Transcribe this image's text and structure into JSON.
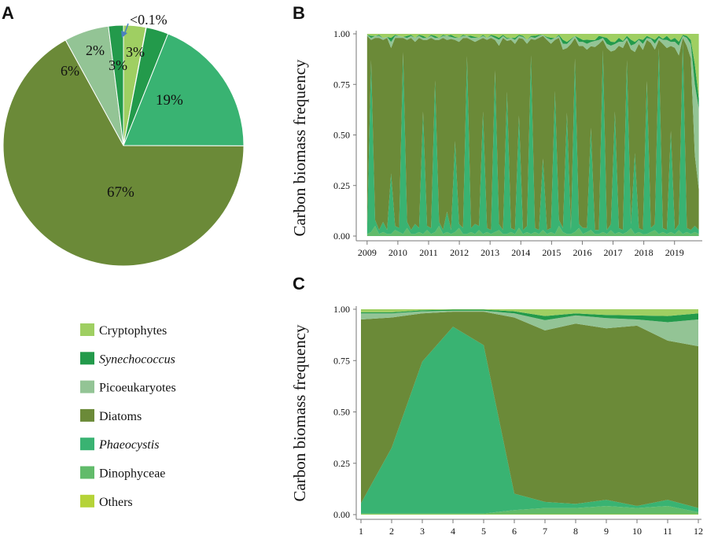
{
  "panels": {
    "a": "A",
    "b": "B",
    "c": "C"
  },
  "colors": {
    "cryptophytes": "#9fcf62",
    "synechococcus": "#239a4b",
    "picoeukaryotes": "#93c495",
    "diatoms": "#6b8a38",
    "phaeocystis": "#39b372",
    "dinophyceae": "#61bb6a",
    "others": "#b5d338"
  },
  "legend": [
    {
      "key": "cryptophytes",
      "label": "Cryptophytes",
      "italic": false
    },
    {
      "key": "synechococcus",
      "label": "Synechococcus",
      "italic": true
    },
    {
      "key": "picoeukaryotes",
      "label": "Picoeukaryotes",
      "italic": false
    },
    {
      "key": "diatoms",
      "label": "Diatoms",
      "italic": false
    },
    {
      "key": "phaeocystis",
      "label": "Phaeocystis",
      "italic": true
    },
    {
      "key": "dinophyceae",
      "label": "Dinophyceae",
      "italic": false
    },
    {
      "key": "others",
      "label": "Others",
      "italic": false
    }
  ],
  "chart_data": [
    {
      "panel": "A",
      "type": "pie",
      "title": "",
      "slices": [
        {
          "key": "cryptophytes",
          "label": "Cryptophytes",
          "value": 3,
          "text": "3%"
        },
        {
          "key": "dinophyceae",
          "label": "Dinophyceae",
          "value": 0.05,
          "text": "<0.1%"
        },
        {
          "key": "synechococcus",
          "label": "Synechococcus",
          "value": 3,
          "text": "3%"
        },
        {
          "key": "phaeocystis",
          "label": "Phaeocystis",
          "value": 19,
          "text": "19%"
        },
        {
          "key": "diatoms",
          "label": "Diatoms",
          "value": 67,
          "text": "67%"
        },
        {
          "key": "picoeukaryotes",
          "label": "Picoeukaryotes",
          "value": 6,
          "text": "6%"
        },
        {
          "key": "synechococcus",
          "label": "Synechococcus",
          "value": 2,
          "text": "2%"
        }
      ]
    },
    {
      "panel": "B",
      "type": "area",
      "stacked": true,
      "ylabel": "Carbon biomass frequency",
      "xlabel": "",
      "ylim": [
        0,
        1
      ],
      "xlim": [
        2008.8,
        2019.8
      ],
      "yticks": [
        "0.00",
        "0.25",
        "0.50",
        "0.75",
        "1.00"
      ],
      "xticks": [
        "2009",
        "2010",
        "2011",
        "2012",
        "2013",
        "2014",
        "2015",
        "2016",
        "2017",
        "2018",
        "2019"
      ],
      "series_order": [
        "others",
        "dinophyceae",
        "phaeocystis",
        "diatoms",
        "picoeukaryotes",
        "synechococcus",
        "cryptophytes"
      ],
      "x": [
        2009.0,
        2009.13,
        2009.26,
        2009.39,
        2009.52,
        2009.65,
        2009.78,
        2009.91,
        2010.04,
        2010.17,
        2010.3,
        2010.43,
        2010.56,
        2010.69,
        2010.82,
        2010.95,
        2011.08,
        2011.21,
        2011.34,
        2011.47,
        2011.6,
        2011.73,
        2011.86,
        2011.99,
        2012.12,
        2012.25,
        2012.38,
        2012.51,
        2012.64,
        2012.77,
        2012.9,
        2013.03,
        2013.16,
        2013.29,
        2013.42,
        2013.55,
        2013.68,
        2013.81,
        2013.94,
        2014.07,
        2014.2,
        2014.33,
        2014.46,
        2014.59,
        2014.72,
        2014.85,
        2014.98,
        2015.11,
        2015.24,
        2015.37,
        2015.5,
        2015.63,
        2015.76,
        2015.89,
        2016.02,
        2016.15,
        2016.28,
        2016.41,
        2016.54,
        2016.67,
        2016.8,
        2016.93,
        2017.06,
        2017.19,
        2017.32,
        2017.45,
        2017.58,
        2017.71,
        2017.84,
        2017.97,
        2018.1,
        2018.23,
        2018.36,
        2018.49,
        2018.62,
        2018.75,
        2018.88,
        2019.01,
        2019.14,
        2019.27,
        2019.4,
        2019.53,
        2019.66,
        2019.79
      ],
      "series": [
        {
          "name": "Others",
          "key": "others",
          "values": [
            0,
            0,
            0,
            0,
            0,
            0,
            0,
            0,
            0,
            0,
            0,
            0,
            0,
            0,
            0,
            0,
            0,
            0,
            0,
            0,
            0,
            0,
            0,
            0,
            0,
            0,
            0,
            0,
            0,
            0,
            0,
            0,
            0,
            0,
            0,
            0,
            0,
            0,
            0,
            0,
            0,
            0,
            0,
            0,
            0,
            0,
            0,
            0,
            0,
            0,
            0,
            0,
            0,
            0,
            0,
            0,
            0,
            0,
            0,
            0,
            0,
            0,
            0,
            0,
            0,
            0,
            0,
            0,
            0,
            0,
            0,
            0,
            0,
            0,
            0,
            0,
            0,
            0,
            0,
            0,
            0,
            0,
            0,
            0
          ]
        },
        {
          "name": "Dinophyceae",
          "key": "dinophyceae",
          "values": [
            0.01,
            0.02,
            0.05,
            0.01,
            0.02,
            0.01,
            0.01,
            0.03,
            0.02,
            0.01,
            0.04,
            0.01,
            0.01,
            0.02,
            0.01,
            0.03,
            0.01,
            0.02,
            0.05,
            0.01,
            0.02,
            0.01,
            0.02,
            0.04,
            0.01,
            0.01,
            0.02,
            0.01,
            0.03,
            0.01,
            0.02,
            0.01,
            0.02,
            0.03,
            0.01,
            0.01,
            0.02,
            0.01,
            0.04,
            0.01,
            0.02,
            0.01,
            0.02,
            0.01,
            0.03,
            0.01,
            0.02,
            0.01,
            0.05,
            0.02,
            0.01,
            0.01,
            0.02,
            0.04,
            0.01,
            0.02,
            0.03,
            0.01,
            0.01,
            0.02,
            0.01,
            0.03,
            0.01,
            0.02,
            0.01,
            0.02,
            0.04,
            0.01,
            0.02,
            0.01,
            0.01,
            0.02,
            0.03,
            0.01,
            0.02,
            0.01,
            0.02,
            0.01,
            0.03,
            0.01,
            0.02,
            0.01,
            0.02,
            0.01
          ]
        },
        {
          "name": "Phaeocystis",
          "key": "phaeocystis",
          "values": [
            0.02,
            0.85,
            0.03,
            0.02,
            0.05,
            0.02,
            0.3,
            0.02,
            0.02,
            0.9,
            0.03,
            0.02,
            0.05,
            0.02,
            0.6,
            0.02,
            0.03,
            0.75,
            0.02,
            0.02,
            0.1,
            0.02,
            0.45,
            0.02,
            0.03,
            0.88,
            0.02,
            0.05,
            0.02,
            0.6,
            0.02,
            0.02,
            0.8,
            0.03,
            0.02,
            0.7,
            0.02,
            0.02,
            0.55,
            0.02,
            0.03,
            0.88,
            0.02,
            0.02,
            0.35,
            0.02,
            0.02,
            0.7,
            0.03,
            0.02,
            0.6,
            0.02,
            0.85,
            0.02,
            0.03,
            0.02,
            0.5,
            0.02,
            0.02,
            0.9,
            0.02,
            0.03,
            0.6,
            0.02,
            0.02,
            0.85,
            0.02,
            0.4,
            0.02,
            0.02,
            0.75,
            0.02,
            0.03,
            0.92,
            0.02,
            0.02,
            0.5,
            0.02,
            0.03,
            0.95,
            0.02,
            0.02,
            0.03,
            0.02
          ]
        },
        {
          "name": "Diatoms",
          "key": "diatoms",
          "values": [
            0.96,
            0.1,
            0.9,
            0.95,
            0.9,
            0.95,
            0.62,
            0.93,
            0.94,
            0.07,
            0.9,
            0.95,
            0.9,
            0.94,
            0.35,
            0.92,
            0.94,
            0.2,
            0.9,
            0.95,
            0.85,
            0.94,
            0.5,
            0.9,
            0.93,
            0.09,
            0.94,
            0.9,
            0.93,
            0.36,
            0.94,
            0.95,
            0.15,
            0.9,
            0.95,
            0.25,
            0.94,
            0.93,
            0.38,
            0.95,
            0.92,
            0.08,
            0.94,
            0.95,
            0.6,
            0.94,
            0.93,
            0.25,
            0.9,
            0.9,
            0.32,
            0.92,
            0.1,
            0.88,
            0.9,
            0.9,
            0.4,
            0.9,
            0.92,
            0.05,
            0.9,
            0.88,
            0.3,
            0.92,
            0.9,
            0.1,
            0.9,
            0.5,
            0.92,
            0.9,
            0.2,
            0.92,
            0.89,
            0.04,
            0.92,
            0.9,
            0.42,
            0.91,
            0.86,
            0.02,
            0.9,
            0.85,
            0.35,
            0.2
          ]
        },
        {
          "name": "Picoeukaryotes",
          "key": "picoeukaryotes",
          "values": [
            0.005,
            0.01,
            0.01,
            0.01,
            0.01,
            0.005,
            0.03,
            0.01,
            0.01,
            0.005,
            0.01,
            0.01,
            0.02,
            0.01,
            0.01,
            0.01,
            0.01,
            0.01,
            0.01,
            0.01,
            0.02,
            0.01,
            0.01,
            0.02,
            0.01,
            0.01,
            0.01,
            0.02,
            0.01,
            0.01,
            0.01,
            0.01,
            0.01,
            0.03,
            0.01,
            0.01,
            0.01,
            0.02,
            0.01,
            0.01,
            0.02,
            0.01,
            0.01,
            0.01,
            0.005,
            0.01,
            0.02,
            0.01,
            0.01,
            0.03,
            0.02,
            0.02,
            0.01,
            0.02,
            0.02,
            0.03,
            0.02,
            0.03,
            0.02,
            0.01,
            0.02,
            0.03,
            0.03,
            0.02,
            0.03,
            0.01,
            0.02,
            0.04,
            0.02,
            0.03,
            0.01,
            0.02,
            0.03,
            0.01,
            0.02,
            0.04,
            0.02,
            0.03,
            0.05,
            0.01,
            0.04,
            0.07,
            0.35,
            0.4
          ]
        },
        {
          "name": "Synechococcus",
          "key": "synechococcus",
          "values": [
            0.0,
            0.01,
            0.0,
            0.005,
            0.0,
            0.0,
            0.02,
            0.005,
            0.0,
            0.0,
            0.01,
            0.005,
            0.0,
            0.005,
            0.01,
            0.0,
            0.005,
            0.01,
            0.0,
            0.005,
            0.0,
            0.01,
            0.005,
            0.0,
            0.005,
            0.0,
            0.01,
            0.005,
            0.0,
            0.005,
            0.0,
            0.005,
            0.01,
            0.01,
            0.005,
            0.005,
            0.0,
            0.01,
            0.005,
            0.005,
            0.0,
            0.005,
            0.01,
            0.005,
            0.0,
            0.005,
            0.01,
            0.0,
            0.005,
            0.02,
            0.01,
            0.005,
            0.0,
            0.02,
            0.01,
            0.02,
            0.01,
            0.005,
            0.02,
            0.005,
            0.03,
            0.02,
            0.01,
            0.02,
            0.005,
            0.01,
            0.03,
            0.01,
            0.005,
            0.02,
            0.01,
            0.005,
            0.02,
            0.01,
            0.005,
            0.02,
            0.01,
            0.02,
            0.02,
            0.005,
            0.01,
            0.02,
            0.1,
            0.05
          ]
        },
        {
          "name": "Cryptophytes",
          "key": "cryptophytes",
          "values": [
            0.005,
            0.01,
            0.01,
            0.005,
            0.02,
            0.015,
            0.02,
            0.005,
            0.01,
            0.015,
            0.01,
            0.005,
            0.02,
            0.005,
            0.01,
            0.02,
            0.005,
            0.01,
            0.02,
            0.005,
            0.01,
            0.005,
            0.015,
            0.02,
            0.005,
            0.01,
            0.01,
            0.015,
            0.02,
            0.005,
            0.02,
            0.005,
            0.01,
            0.02,
            0.005,
            0.02,
            0.02,
            0.02,
            0.005,
            0.01,
            0.03,
            0.01,
            0.01,
            0.005,
            0.005,
            0.015,
            0.02,
            0.02,
            0.005,
            0.03,
            0.04,
            0.025,
            0.01,
            0.02,
            0.03,
            0.03,
            0.03,
            0.03,
            0.01,
            0.015,
            0.02,
            0.04,
            0.04,
            0.02,
            0.035,
            0.01,
            0.03,
            0.04,
            0.025,
            0.03,
            0.01,
            0.02,
            0.03,
            0.01,
            0.025,
            0.01,
            0.03,
            0.02,
            0.04,
            0.005,
            0.01,
            0.03,
            0.15,
            0.32
          ]
        }
      ]
    },
    {
      "panel": "C",
      "type": "area",
      "stacked": true,
      "ylabel": "Carbon biomass frequency",
      "xlabel": "",
      "ylim": [
        0,
        1
      ],
      "xlim": [
        1,
        12
      ],
      "yticks": [
        "0.00",
        "0.25",
        "0.50",
        "0.75",
        "1.00"
      ],
      "xticks": [
        "1",
        "2",
        "3",
        "4",
        "5",
        "6",
        "7",
        "8",
        "9",
        "10",
        "11",
        "12"
      ],
      "series_order": [
        "others",
        "dinophyceae",
        "phaeocystis",
        "diatoms",
        "picoeukaryotes",
        "synechococcus",
        "cryptophytes"
      ],
      "x": [
        1,
        2,
        3,
        4,
        5,
        6,
        7,
        8,
        9,
        10,
        11,
        12
      ],
      "series": [
        {
          "name": "Others",
          "key": "others",
          "values": [
            0.002,
            0.002,
            0.002,
            0.002,
            0.002,
            0.002,
            0.002,
            0.002,
            0.002,
            0.002,
            0.002,
            0.002
          ]
        },
        {
          "name": "Dinophyceae",
          "key": "dinophyceae",
          "values": [
            0.003,
            0.003,
            0.003,
            0.003,
            0.003,
            0.02,
            0.03,
            0.03,
            0.04,
            0.03,
            0.04,
            0.01
          ]
        },
        {
          "name": "Phaeocystis",
          "key": "phaeocystis",
          "values": [
            0.05,
            0.32,
            0.74,
            0.91,
            0.82,
            0.08,
            0.03,
            0.02,
            0.03,
            0.01,
            0.03,
            0.02
          ]
        },
        {
          "name": "Diatoms",
          "key": "diatoms",
          "values": [
            0.895,
            0.635,
            0.235,
            0.073,
            0.163,
            0.858,
            0.835,
            0.878,
            0.835,
            0.878,
            0.775,
            0.788
          ]
        },
        {
          "name": "Picoeukaryotes",
          "key": "picoeukaryotes",
          "values": [
            0.03,
            0.02,
            0.01,
            0.005,
            0.005,
            0.02,
            0.05,
            0.04,
            0.05,
            0.03,
            0.09,
            0.13
          ]
        },
        {
          "name": "Synechococcus",
          "key": "synechococcus",
          "values": [
            0.005,
            0.005,
            0.005,
            0.005,
            0.005,
            0.01,
            0.02,
            0.01,
            0.015,
            0.02,
            0.03,
            0.03
          ]
        },
        {
          "name": "Cryptophytes",
          "key": "cryptophytes",
          "values": [
            0.015,
            0.015,
            0.005,
            0.002,
            0.002,
            0.01,
            0.033,
            0.02,
            0.028,
            0.03,
            0.033,
            0.02
          ]
        }
      ]
    }
  ]
}
